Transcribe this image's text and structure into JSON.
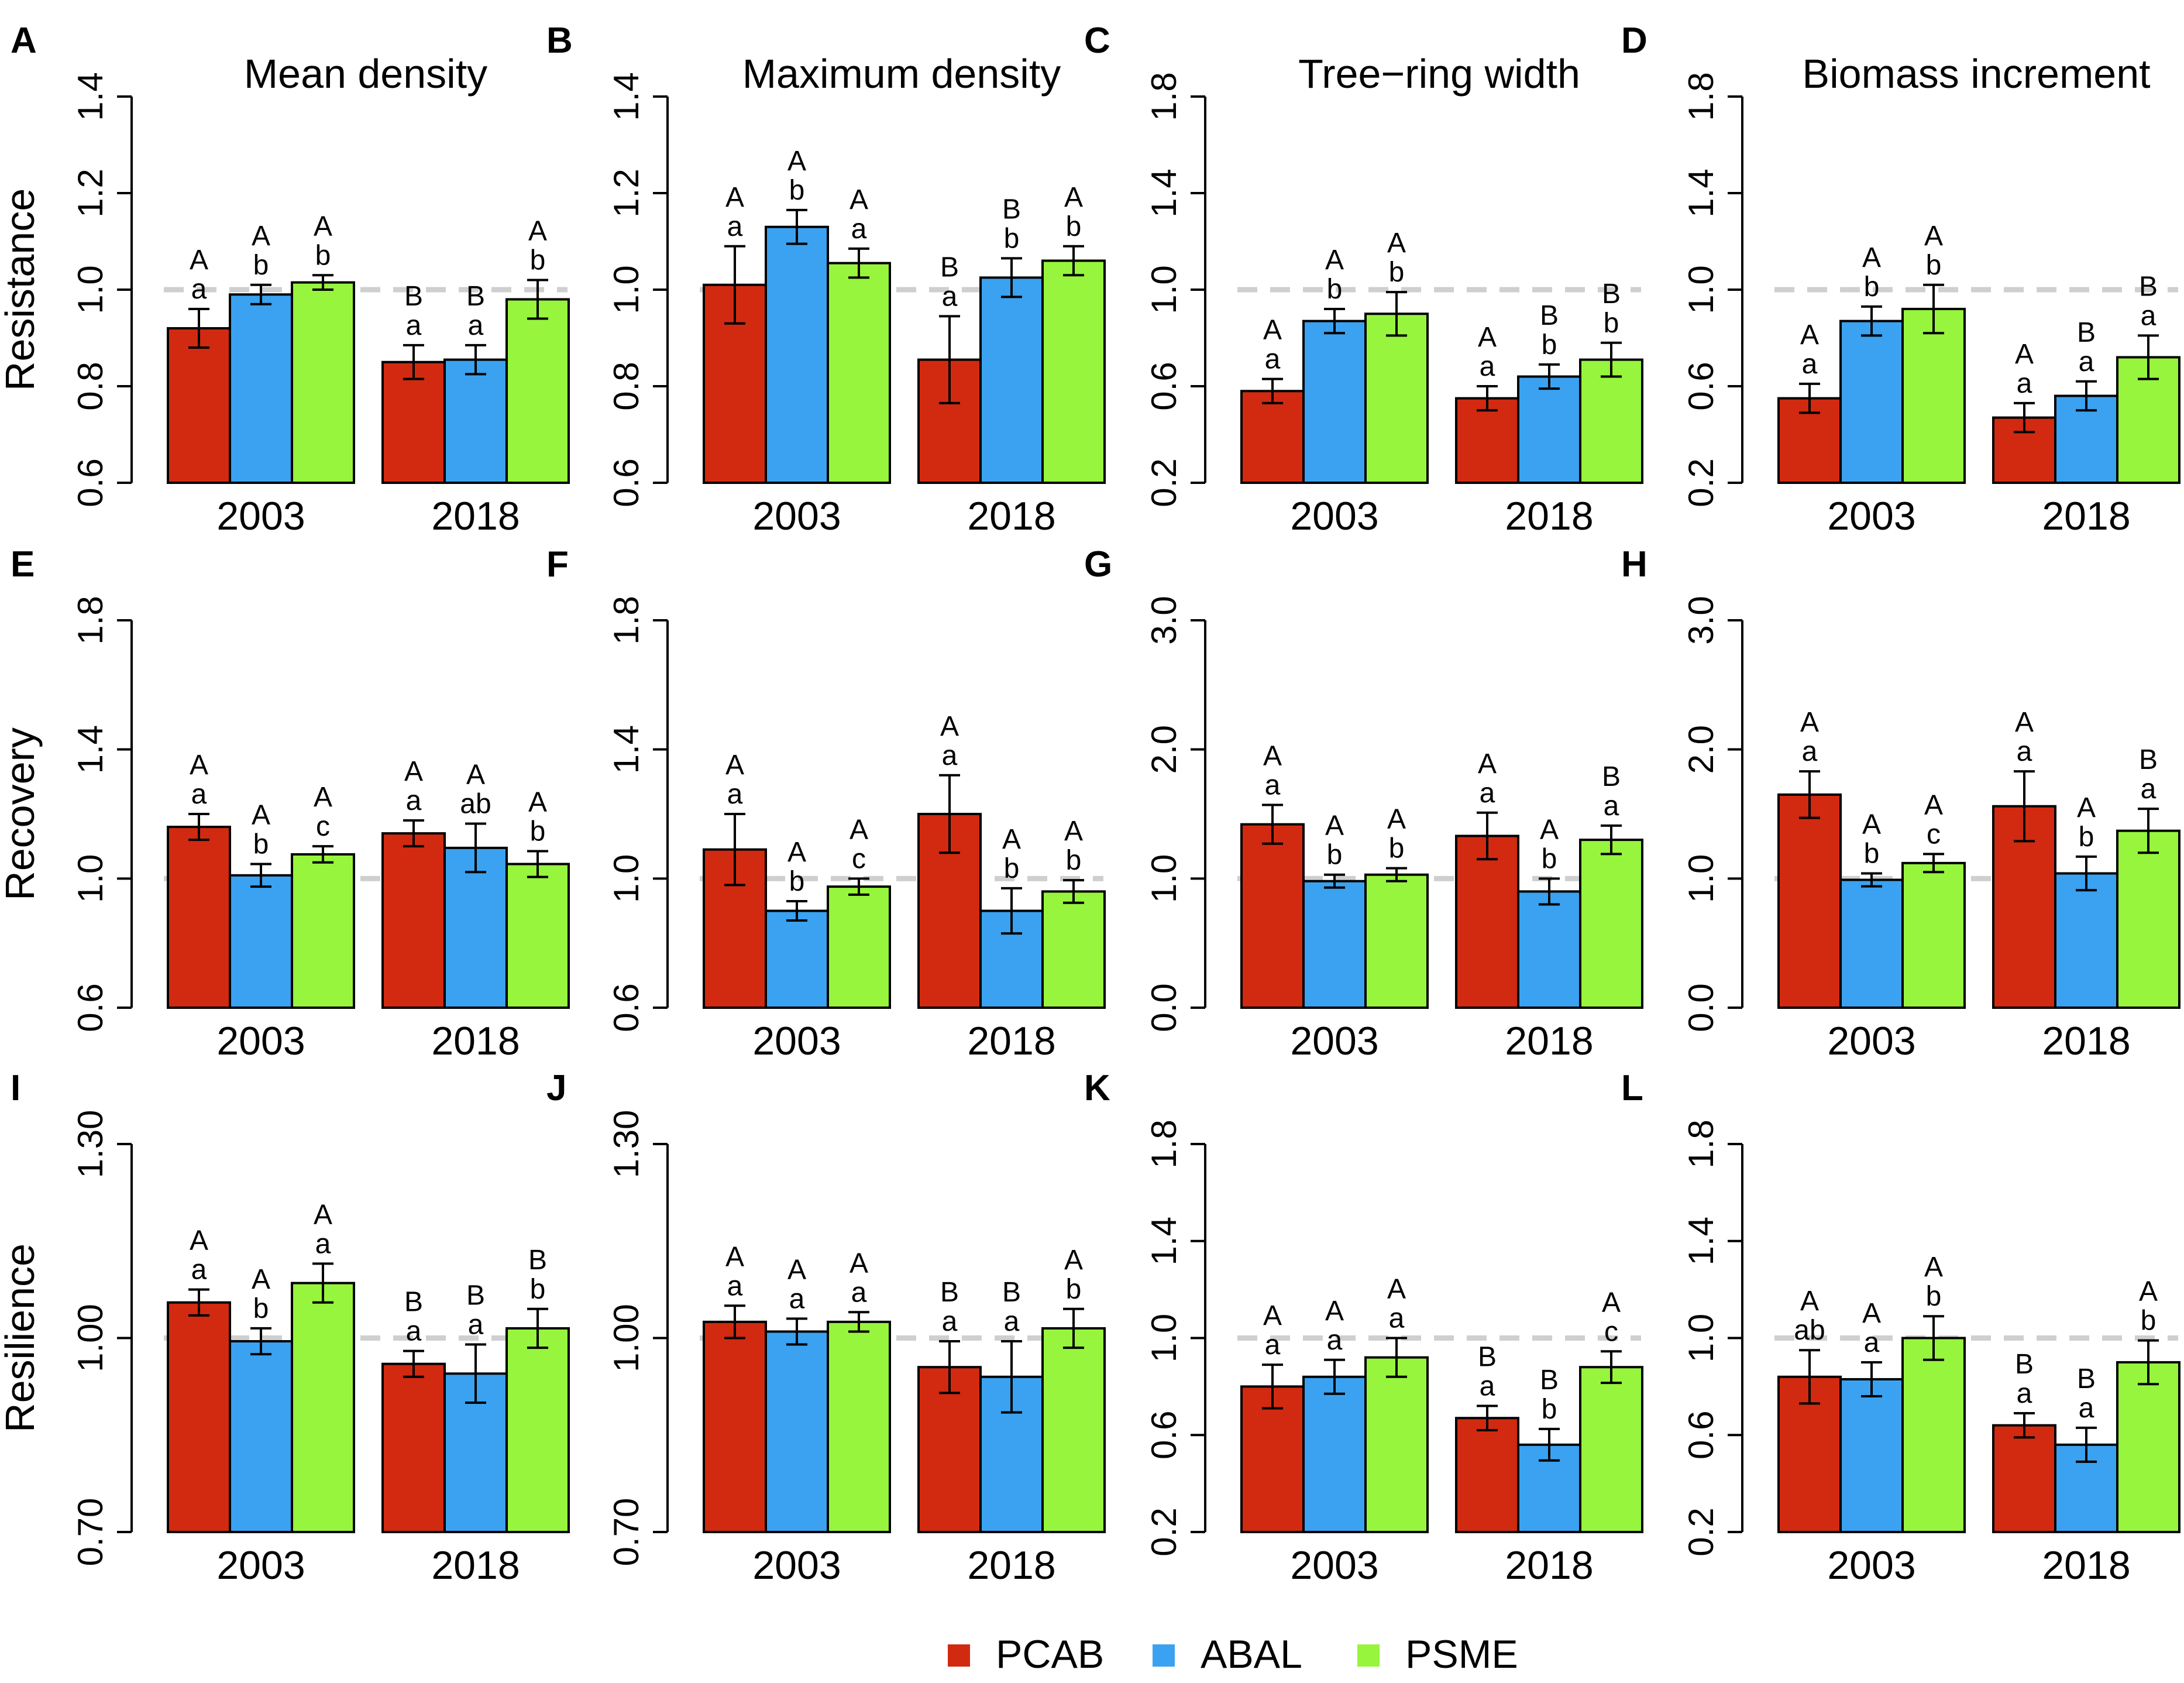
{
  "figure": {
    "col_titles": [
      "Mean density",
      "Maximum density",
      "Tree−ring width",
      "Biomass increment"
    ],
    "row_labels": [
      "Resistance",
      "Recovery",
      "Resilience"
    ],
    "reference_line": 1.0
  },
  "legend": {
    "entries": [
      {
        "name": "PCAB",
        "color": "#d12a10"
      },
      {
        "name": "ABAL",
        "color": "#3aa2f0"
      },
      {
        "name": "PSME",
        "color": "#96f53c"
      }
    ]
  },
  "chart_data": [
    {
      "panel": "A",
      "type": "bar",
      "metric": "Resistance",
      "variable": "Mean density",
      "yticks": [
        "0.6",
        "0.8",
        "1.0",
        "1.2",
        "1.4"
      ],
      "ylim": [
        0.6,
        1.4
      ],
      "categories": [
        "2003",
        "2018"
      ],
      "series": [
        {
          "name": "PCAB",
          "values": [
            0.92,
            0.85
          ],
          "errors": [
            0.04,
            0.035
          ],
          "sig_upper": [
            "A",
            "B"
          ],
          "sig_lower": [
            "a",
            "a"
          ]
        },
        {
          "name": "ABAL",
          "values": [
            0.99,
            0.855
          ],
          "errors": [
            0.02,
            0.03
          ],
          "sig_upper": [
            "A",
            "B"
          ],
          "sig_lower": [
            "b",
            "a"
          ]
        },
        {
          "name": "PSME",
          "values": [
            1.015,
            0.98
          ],
          "errors": [
            0.015,
            0.04
          ],
          "sig_upper": [
            "A",
            "A"
          ],
          "sig_lower": [
            "b",
            "b"
          ]
        }
      ]
    },
    {
      "panel": "B",
      "type": "bar",
      "metric": "Resistance",
      "variable": "Maximum density",
      "yticks": [
        "0.6",
        "0.8",
        "1.0",
        "1.2",
        "1.4"
      ],
      "ylim": [
        0.6,
        1.4
      ],
      "categories": [
        "2003",
        "2018"
      ],
      "series": [
        {
          "name": "PCAB",
          "values": [
            1.01,
            0.855
          ],
          "errors": [
            0.08,
            0.09
          ],
          "sig_upper": [
            "A",
            "B"
          ],
          "sig_lower": [
            "a",
            "a"
          ]
        },
        {
          "name": "ABAL",
          "values": [
            1.13,
            1.025
          ],
          "errors": [
            0.035,
            0.04
          ],
          "sig_upper": [
            "A",
            "B"
          ],
          "sig_lower": [
            "b",
            "b"
          ]
        },
        {
          "name": "PSME",
          "values": [
            1.055,
            1.06
          ],
          "errors": [
            0.03,
            0.03
          ],
          "sig_upper": [
            "A",
            "A"
          ],
          "sig_lower": [
            "a",
            "b"
          ]
        }
      ]
    },
    {
      "panel": "C",
      "type": "bar",
      "metric": "Resistance",
      "variable": "Tree−ring width",
      "yticks": [
        "0.2",
        "0.6",
        "1.0",
        "1.4",
        "1.8"
      ],
      "ylim": [
        0.2,
        1.8
      ],
      "categories": [
        "2003",
        "2018"
      ],
      "series": [
        {
          "name": "PCAB",
          "values": [
            0.58,
            0.55
          ],
          "errors": [
            0.05,
            0.05
          ],
          "sig_upper": [
            "A",
            "A"
          ],
          "sig_lower": [
            "a",
            "a"
          ]
        },
        {
          "name": "ABAL",
          "values": [
            0.87,
            0.64
          ],
          "errors": [
            0.05,
            0.05
          ],
          "sig_upper": [
            "A",
            "B"
          ],
          "sig_lower": [
            "b",
            "b"
          ]
        },
        {
          "name": "PSME",
          "values": [
            0.9,
            0.71
          ],
          "errors": [
            0.09,
            0.07
          ],
          "sig_upper": [
            "A",
            "B"
          ],
          "sig_lower": [
            "b",
            "b"
          ]
        }
      ]
    },
    {
      "panel": "D",
      "type": "bar",
      "metric": "Resistance",
      "variable": "Biomass increment",
      "yticks": [
        "0.2",
        "0.6",
        "1.0",
        "1.4",
        "1.8"
      ],
      "ylim": [
        0.2,
        1.8
      ],
      "categories": [
        "2003",
        "2018"
      ],
      "series": [
        {
          "name": "PCAB",
          "values": [
            0.55,
            0.47
          ],
          "errors": [
            0.06,
            0.06
          ],
          "sig_upper": [
            "A",
            "A"
          ],
          "sig_lower": [
            "a",
            "a"
          ]
        },
        {
          "name": "ABAL",
          "values": [
            0.87,
            0.56
          ],
          "errors": [
            0.06,
            0.06
          ],
          "sig_upper": [
            "A",
            "B"
          ],
          "sig_lower": [
            "b",
            "a"
          ]
        },
        {
          "name": "PSME",
          "values": [
            0.92,
            0.72
          ],
          "errors": [
            0.1,
            0.09
          ],
          "sig_upper": [
            "A",
            "B"
          ],
          "sig_lower": [
            "b",
            "a"
          ]
        }
      ]
    },
    {
      "panel": "E",
      "type": "bar",
      "metric": "Recovery",
      "variable": "Mean density",
      "yticks": [
        "0.6",
        "1.0",
        "1.4",
        "1.8"
      ],
      "ylim": [
        0.6,
        1.8
      ],
      "categories": [
        "2003",
        "2018"
      ],
      "series": [
        {
          "name": "PCAB",
          "values": [
            1.16,
            1.14
          ],
          "errors": [
            0.04,
            0.04
          ],
          "sig_upper": [
            "A",
            "A"
          ],
          "sig_lower": [
            "a",
            "a"
          ]
        },
        {
          "name": "ABAL",
          "values": [
            1.01,
            1.095
          ],
          "errors": [
            0.035,
            0.075
          ],
          "sig_upper": [
            "A",
            "A"
          ],
          "sig_lower": [
            "b",
            "ab"
          ]
        },
        {
          "name": "PSME",
          "values": [
            1.075,
            1.045
          ],
          "errors": [
            0.025,
            0.04
          ],
          "sig_upper": [
            "A",
            "A"
          ],
          "sig_lower": [
            "c",
            "b"
          ]
        }
      ]
    },
    {
      "panel": "F",
      "type": "bar",
      "metric": "Recovery",
      "variable": "Maximum density",
      "yticks": [
        "0.6",
        "1.0",
        "1.4",
        "1.8"
      ],
      "ylim": [
        0.6,
        1.8
      ],
      "categories": [
        "2003",
        "2018"
      ],
      "series": [
        {
          "name": "PCAB",
          "values": [
            1.09,
            1.2
          ],
          "errors": [
            0.11,
            0.12
          ],
          "sig_upper": [
            "A",
            "A"
          ],
          "sig_lower": [
            "a",
            "a"
          ]
        },
        {
          "name": "ABAL",
          "values": [
            0.9,
            0.9
          ],
          "errors": [
            0.03,
            0.07
          ],
          "sig_upper": [
            "A",
            "A"
          ],
          "sig_lower": [
            "b",
            "b"
          ]
        },
        {
          "name": "PSME",
          "values": [
            0.975,
            0.96
          ],
          "errors": [
            0.025,
            0.035
          ],
          "sig_upper": [
            "A",
            "A"
          ],
          "sig_lower": [
            "c",
            "b"
          ]
        }
      ]
    },
    {
      "panel": "G",
      "type": "bar",
      "metric": "Recovery",
      "variable": "Tree−ring width",
      "yticks": [
        "0.0",
        "1.0",
        "2.0",
        "3.0"
      ],
      "ylim": [
        0.0,
        3.0
      ],
      "categories": [
        "2003",
        "2018"
      ],
      "series": [
        {
          "name": "PCAB",
          "values": [
            1.42,
            1.33
          ],
          "errors": [
            0.15,
            0.18
          ],
          "sig_upper": [
            "A",
            "A"
          ],
          "sig_lower": [
            "a",
            "a"
          ]
        },
        {
          "name": "ABAL",
          "values": [
            0.98,
            0.9
          ],
          "errors": [
            0.05,
            0.1
          ],
          "sig_upper": [
            "A",
            "A"
          ],
          "sig_lower": [
            "b",
            "b"
          ]
        },
        {
          "name": "PSME",
          "values": [
            1.03,
            1.3
          ],
          "errors": [
            0.05,
            0.11
          ],
          "sig_upper": [
            "A",
            "B"
          ],
          "sig_lower": [
            "b",
            "a"
          ]
        }
      ]
    },
    {
      "panel": "H",
      "type": "bar",
      "metric": "Recovery",
      "variable": "Biomass increment",
      "yticks": [
        "0.0",
        "1.0",
        "2.0",
        "3.0"
      ],
      "ylim": [
        0.0,
        3.0
      ],
      "categories": [
        "2003",
        "2018"
      ],
      "series": [
        {
          "name": "PCAB",
          "values": [
            1.65,
            1.56
          ],
          "errors": [
            0.18,
            0.27
          ],
          "sig_upper": [
            "A",
            "A"
          ],
          "sig_lower": [
            "a",
            "a"
          ]
        },
        {
          "name": "ABAL",
          "values": [
            0.99,
            1.04
          ],
          "errors": [
            0.05,
            0.13
          ],
          "sig_upper": [
            "A",
            "A"
          ],
          "sig_lower": [
            "b",
            "b"
          ]
        },
        {
          "name": "PSME",
          "values": [
            1.12,
            1.37
          ],
          "errors": [
            0.07,
            0.17
          ],
          "sig_upper": [
            "A",
            "B"
          ],
          "sig_lower": [
            "c",
            "a"
          ]
        }
      ]
    },
    {
      "panel": "I",
      "type": "bar",
      "metric": "Resilience",
      "variable": "Mean density",
      "yticks": [
        "0.70",
        "1.00",
        "1.30"
      ],
      "ylim": [
        0.7,
        1.3
      ],
      "categories": [
        "2003",
        "2018"
      ],
      "series": [
        {
          "name": "PCAB",
          "values": [
            1.055,
            0.96
          ],
          "errors": [
            0.02,
            0.02
          ],
          "sig_upper": [
            "A",
            "B"
          ],
          "sig_lower": [
            "a",
            "a"
          ]
        },
        {
          "name": "ABAL",
          "values": [
            0.995,
            0.945
          ],
          "errors": [
            0.02,
            0.045
          ],
          "sig_upper": [
            "A",
            "B"
          ],
          "sig_lower": [
            "b",
            "a"
          ]
        },
        {
          "name": "PSME",
          "values": [
            1.085,
            1.015
          ],
          "errors": [
            0.03,
            0.03
          ],
          "sig_upper": [
            "A",
            "B"
          ],
          "sig_lower": [
            "a",
            "b"
          ]
        }
      ]
    },
    {
      "panel": "J",
      "type": "bar",
      "metric": "Resilience",
      "variable": "Maximum density",
      "yticks": [
        "0.70",
        "1.00",
        "1.30"
      ],
      "ylim": [
        0.7,
        1.3
      ],
      "categories": [
        "2003",
        "2018"
      ],
      "series": [
        {
          "name": "PCAB",
          "values": [
            1.025,
            0.955
          ],
          "errors": [
            0.025,
            0.04
          ],
          "sig_upper": [
            "A",
            "B"
          ],
          "sig_lower": [
            "a",
            "a"
          ]
        },
        {
          "name": "ABAL",
          "values": [
            1.01,
            0.94
          ],
          "errors": [
            0.02,
            0.055
          ],
          "sig_upper": [
            "A",
            "B"
          ],
          "sig_lower": [
            "a",
            "a"
          ]
        },
        {
          "name": "PSME",
          "values": [
            1.025,
            1.015
          ],
          "errors": [
            0.015,
            0.03
          ],
          "sig_upper": [
            "A",
            "A"
          ],
          "sig_lower": [
            "a",
            "b"
          ]
        }
      ]
    },
    {
      "panel": "K",
      "type": "bar",
      "metric": "Resilience",
      "variable": "Tree−ring width",
      "yticks": [
        "0.2",
        "0.6",
        "1.0",
        "1.4",
        "1.8"
      ],
      "ylim": [
        0.2,
        1.8
      ],
      "categories": [
        "2003",
        "2018"
      ],
      "series": [
        {
          "name": "PCAB",
          "values": [
            0.8,
            0.67
          ],
          "errors": [
            0.09,
            0.05
          ],
          "sig_upper": [
            "A",
            "B"
          ],
          "sig_lower": [
            "a",
            "a"
          ]
        },
        {
          "name": "ABAL",
          "values": [
            0.84,
            0.56
          ],
          "errors": [
            0.07,
            0.065
          ],
          "sig_upper": [
            "A",
            "B"
          ],
          "sig_lower": [
            "a",
            "b"
          ]
        },
        {
          "name": "PSME",
          "values": [
            0.92,
            0.88
          ],
          "errors": [
            0.08,
            0.065
          ],
          "sig_upper": [
            "A",
            "A"
          ],
          "sig_lower": [
            "a",
            "c"
          ]
        }
      ]
    },
    {
      "panel": "L",
      "type": "bar",
      "metric": "Resilience",
      "variable": "Biomass increment",
      "yticks": [
        "0.2",
        "0.6",
        "1.0",
        "1.4",
        "1.8"
      ],
      "ylim": [
        0.2,
        1.8
      ],
      "categories": [
        "2003",
        "2018"
      ],
      "series": [
        {
          "name": "PCAB",
          "values": [
            0.84,
            0.64
          ],
          "errors": [
            0.11,
            0.05
          ],
          "sig_upper": [
            "A",
            "B"
          ],
          "sig_lower": [
            "ab",
            "a"
          ]
        },
        {
          "name": "ABAL",
          "values": [
            0.83,
            0.56
          ],
          "errors": [
            0.07,
            0.07
          ],
          "sig_upper": [
            "A",
            "B"
          ],
          "sig_lower": [
            "a",
            "a"
          ]
        },
        {
          "name": "PSME",
          "values": [
            1.0,
            0.9
          ],
          "errors": [
            0.09,
            0.09
          ],
          "sig_upper": [
            "A",
            "A"
          ],
          "sig_lower": [
            "b",
            "b"
          ]
        }
      ]
    }
  ]
}
